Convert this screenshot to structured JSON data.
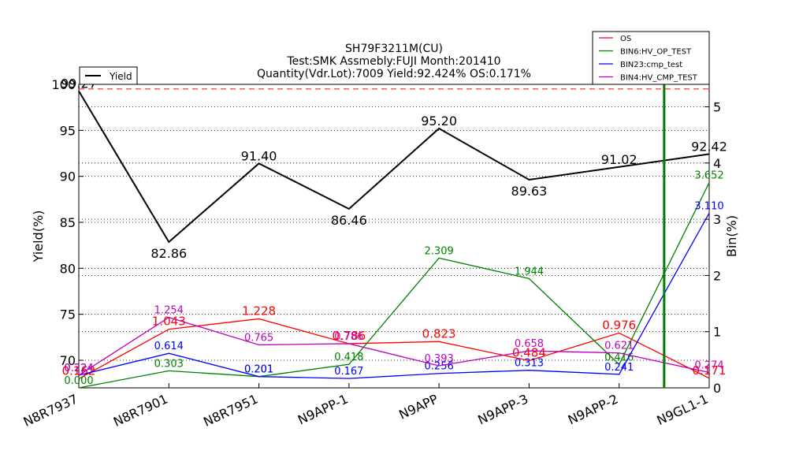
{
  "chart_data": {
    "type": "line",
    "title_lines": [
      "SH79F3211M(CU)",
      "Test:SMK   Assmebly:FUJI   Month:201410",
      "Quantity(Vdr.Lot):7009   Yield:92.424%  OS:0.171%"
    ],
    "categories": [
      "N8R7937",
      "N8R7901",
      "N8R7951",
      "N9APP-1",
      "N9APP",
      "N9APP-3",
      "N9APP-2",
      "N9GL1-1"
    ],
    "ylabel_left": "Yield(%)",
    "ylabel_right": "Bin(%)",
    "ylim_left": [
      67,
      100
    ],
    "ylim_right": [
      0,
      5.4
    ],
    "yticks_left": [
      "70",
      "75",
      "80",
      "85",
      "90",
      "95",
      "100"
    ],
    "yticks_right": [
      "0",
      "1",
      "2",
      "3",
      "4",
      "5"
    ],
    "grid": "dotted horizontal",
    "reference_line": {
      "axis": "left",
      "value": 99.5,
      "style": "dashed",
      "color": "#ff0000"
    },
    "vertical_marker": {
      "category_position": 6.5,
      "color": "#008000"
    },
    "yield_series": {
      "name": "Yield",
      "color": "#000000",
      "values": [
        99.27,
        82.86,
        91.4,
        86.46,
        95.2,
        89.63,
        91.02,
        92.42
      ],
      "labels": [
        "99.27",
        "82.86",
        "91.40",
        "86.46",
        "95.20",
        "89.63",
        "91.02",
        "92.42"
      ]
    },
    "yield_legend_position": "top-left",
    "bin_legend_position": "top-right",
    "bin_series": [
      {
        "name": "OS",
        "color": "#ff0000",
        "values": [
          0.162,
          1.043,
          1.228,
          0.786,
          0.823,
          0.484,
          0.976,
          0.171
        ],
        "labels": [
          "0.162",
          "1.043",
          "1.228",
          "0.786",
          "0.823",
          "0.484",
          "0.976",
          "0.171"
        ]
      },
      {
        "name": "BIN6:HV_OP_TEST",
        "color": "#008000",
        "values": [
          0.0,
          0.303,
          0.201,
          0.418,
          2.309,
          1.944,
          0.416,
          3.652
        ],
        "labels": [
          "0.000",
          "0.303",
          "0.201",
          "0.418",
          "2.309",
          "1.944",
          "0.416",
          "3.652"
        ]
      },
      {
        "name": "BIN23:cmp_test",
        "color": "#0000ff",
        "values": [
          0.224,
          0.614,
          0.201,
          0.167,
          0.256,
          0.313,
          0.241,
          3.11
        ],
        "labels": [
          "0.224",
          "0.614",
          "0.201",
          "0.167",
          "0.256",
          "0.313",
          "0.241",
          "3.110"
        ]
      },
      {
        "name": "BIN4:HV_CMP_TEST",
        "color": "#bf00bf",
        "values": [
          0.224,
          1.254,
          0.765,
          0.786,
          0.393,
          0.658,
          0.621,
          0.274
        ],
        "labels": [
          "0.224",
          "1.254",
          "0.765",
          "0.786",
          "0.393",
          "0.658",
          "0.621",
          "0.274"
        ]
      }
    ]
  }
}
